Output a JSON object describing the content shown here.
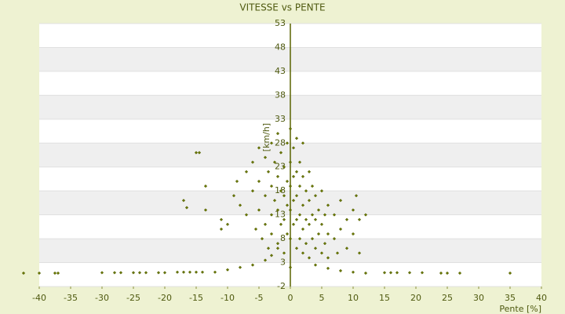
{
  "chart_data": {
    "type": "scatter",
    "title": "VITESSE vs PENTE",
    "x_label": "Pente [%]",
    "y_label": "[km/h]",
    "color": "#6b7a00",
    "point_border": "#4a5500",
    "xlim": [
      -40,
      40
    ],
    "ylim": [
      -2,
      53
    ],
    "xticks": [
      -40,
      -35,
      -30,
      -25,
      -20,
      -15,
      -10,
      -5,
      0,
      5,
      10,
      15,
      20,
      25,
      30,
      35,
      40
    ],
    "yticks": [
      -2,
      3,
      8,
      13,
      18,
      23,
      28,
      33,
      38,
      43,
      48,
      53
    ],
    "grid": true,
    "x": [
      -15,
      -14.5,
      -17,
      -16.5,
      -13.5,
      -13.5,
      -11,
      -11,
      -10,
      -9,
      -8.5,
      -8,
      -7,
      -7,
      -6,
      -6,
      -5.5,
      -5,
      -5,
      -5,
      -4.5,
      -4,
      -4,
      -4,
      -3.5,
      -3.5,
      -3,
      -3,
      -3,
      -3,
      -2.5,
      -2.5,
      -2,
      -2,
      -2,
      -2,
      -1.5,
      -1.5,
      -1.5,
      -1,
      -1,
      -1,
      -1,
      -0.5,
      -0.5,
      -0.5,
      -0.5,
      0,
      0,
      0,
      0,
      0,
      0,
      0.5,
      0.5,
      0.5,
      0.5,
      1,
      1,
      1,
      1,
      1,
      1.5,
      1.5,
      1.5,
      1.5,
      2,
      2,
      2,
      2,
      2,
      2.5,
      2.5,
      2.5,
      3,
      3,
      3,
      3,
      3.5,
      3.5,
      3.5,
      4,
      4,
      4,
      4.5,
      4.5,
      5,
      5,
      5,
      5.5,
      5.5,
      6,
      6,
      6,
      7,
      7,
      7.5,
      8,
      8,
      9,
      9,
      10,
      10,
      10.5,
      11,
      11,
      12,
      -12,
      -10,
      -8,
      -6,
      -4,
      -3,
      -2,
      4,
      6,
      8,
      10,
      12,
      -42.5,
      -40,
      -37.5,
      -37,
      -30,
      -28,
      -27,
      -25,
      -24,
      -23,
      -21,
      -20,
      -18,
      -17,
      -16,
      -15,
      -14,
      15,
      16,
      17,
      19,
      21,
      24,
      25,
      27,
      35
    ],
    "values": [
      26,
      26,
      16,
      14.5,
      19,
      14,
      12,
      10,
      11,
      17,
      20,
      15,
      22,
      13,
      24,
      18,
      10,
      27,
      20,
      14,
      8,
      25,
      17,
      11,
      22,
      6,
      28,
      19,
      13,
      9,
      24,
      16,
      30,
      21,
      14,
      7,
      26,
      18,
      11,
      23,
      17,
      12,
      5,
      28,
      20,
      15,
      9,
      31,
      24,
      19,
      14,
      8,
      2,
      27,
      21,
      16,
      11,
      29,
      22,
      17,
      12,
      6,
      24,
      19,
      13,
      8,
      28,
      21,
      15,
      10,
      5,
      18,
      12,
      7,
      22,
      16,
      11,
      4,
      19,
      13,
      8,
      17,
      12,
      6,
      14,
      9,
      18,
      11,
      5,
      13,
      7,
      15,
      9,
      4,
      13,
      8,
      5,
      16,
      10,
      12,
      6,
      14,
      9,
      17,
      12,
      5,
      13,
      1,
      1.5,
      2,
      2.5,
      3.5,
      4.5,
      6,
      2.5,
      1.8,
      1.3,
      1,
      0.8,
      0.8,
      0.8,
      0.8,
      0.8,
      0.9,
      0.9,
      0.9,
      0.9,
      0.9,
      0.9,
      0.9,
      0.9,
      1,
      1,
      1,
      1,
      1,
      0.9,
      0.9,
      0.9,
      0.9,
      0.9,
      0.8,
      0.8,
      0.8,
      0.8
    ]
  }
}
